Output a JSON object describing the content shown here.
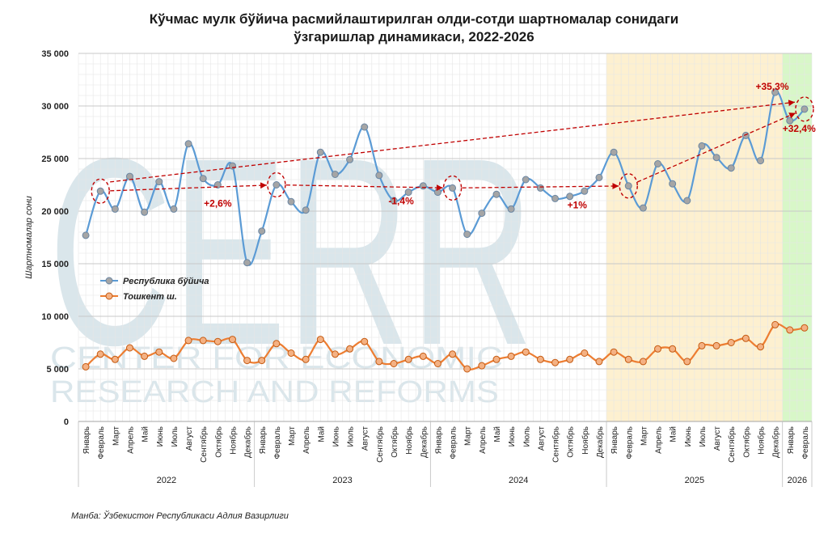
{
  "chart_data": {
    "type": "line",
    "title_line1": "Кўчмас мулк бўйича расмийлаштирилган олди-сотди шартномалар сонидаги",
    "title_line2": "ўзгаришлар динамикаси, 2022-2026",
    "ylabel": "Шартномалар сони",
    "ylim": [
      0,
      35000
    ],
    "yticks": [
      0,
      5000,
      10000,
      15000,
      20000,
      25000,
      30000,
      35000
    ],
    "ytick_labels": [
      "0",
      "5 000",
      "10 000",
      "15 000",
      "20 000",
      "25 000",
      "30 000",
      "35 000"
    ],
    "month_names": [
      "Январь",
      "Февраль",
      "Март",
      "Апрель",
      "Май",
      "Июнь",
      "Июль",
      "Август",
      "Сентябрь",
      "Октябрь",
      "Ноябрь",
      "Декабрь",
      "Январь",
      "Февраль",
      "Март",
      "Апрель",
      "Май",
      "Июнь",
      "Июль",
      "Август",
      "Сентябрь",
      "Октябрь",
      "Ноябрь",
      "Декабрь",
      "Январь",
      "Февраль",
      "Март",
      "Апрель",
      "Май",
      "Июнь",
      "Июль",
      "Август",
      "Сентябрь",
      "Октябрь",
      "Ноябрь",
      "Декабрь",
      "Январь",
      "Февраль",
      "Март",
      "Апрель",
      "Май",
      "Июнь",
      "Июль",
      "Август",
      "Сентябрь",
      "Октябрь",
      "Ноябрь",
      "Декабрь",
      "Январь",
      "Февраль"
    ],
    "years": [
      {
        "label": "2022",
        "start": 0,
        "count": 12
      },
      {
        "label": "2023",
        "start": 12,
        "count": 12
      },
      {
        "label": "2024",
        "start": 24,
        "count": 12
      },
      {
        "label": "2025",
        "start": 36,
        "count": 12
      },
      {
        "label": "2026",
        "start": 48,
        "count": 2
      }
    ],
    "series": [
      {
        "name": "Республика бўйича",
        "color": "#5b9bd5",
        "marker_color": "#a5a5a5",
        "values": [
          17700,
          21900,
          20200,
          23300,
          19900,
          22800,
          20200,
          26400,
          23100,
          22500,
          24300,
          15100,
          18100,
          22500,
          20900,
          20100,
          25600,
          23500,
          24900,
          28000,
          23400,
          21000,
          21800,
          22400,
          21800,
          22200,
          17800,
          19800,
          21600,
          20200,
          23000,
          22200,
          21200,
          21400,
          21900,
          23200,
          25600,
          22400,
          20300,
          24500,
          22600,
          21000,
          26200,
          25100,
          24100,
          27200,
          24800,
          31300,
          28600,
          29700
        ]
      },
      {
        "name": "Тошкент ш.",
        "color": "#ed7d31",
        "marker_color": "#f4b183",
        "values": [
          5200,
          6400,
          5900,
          7000,
          6200,
          6600,
          6000,
          7700,
          7700,
          7600,
          7800,
          5800,
          5800,
          7400,
          6500,
          5900,
          7800,
          6400,
          6900,
          7600,
          5700,
          5500,
          5900,
          6200,
          5500,
          6400,
          5000,
          5300,
          5900,
          6200,
          6600,
          5900,
          5600,
          5900,
          6500,
          5700,
          6600,
          5900,
          5700,
          6900,
          6900,
          5700,
          7200,
          7200,
          7500,
          7900,
          7100,
          9200,
          8700,
          8900
        ]
      }
    ],
    "highlights": [
      {
        "from": 36,
        "to": 47,
        "color": "#fdf0d0"
      },
      {
        "from": 48,
        "to": 49,
        "color": "#d8f7c8"
      }
    ],
    "comparisons": [
      {
        "from": 1,
        "to": 13,
        "label": "+2,6%"
      },
      {
        "from": 13,
        "to": 25,
        "label": "-1,4%"
      },
      {
        "from": 25,
        "to": 37,
        "label": "+1%"
      },
      {
        "from": 1,
        "to": 49,
        "label": "+35,3%"
      },
      {
        "from": 37,
        "to": 49,
        "label": "+32,4%"
      }
    ],
    "annotation_color": "#c00000"
  },
  "watermark": {
    "big": "CERR",
    "line1": "CENTER FOR ECONOMIC",
    "line2": "RESEARCH AND REFORMS"
  },
  "source": "Манба: Ўзбекистон Республикаси Адлия Вазирлиги"
}
